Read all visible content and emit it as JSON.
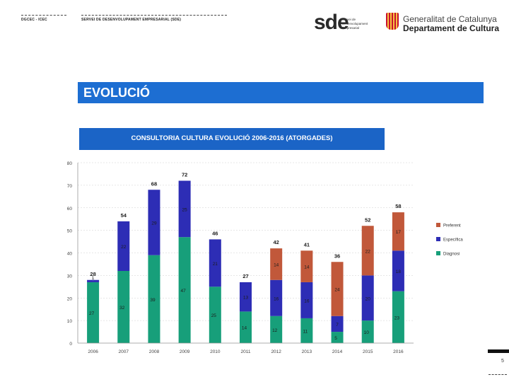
{
  "header": {
    "left_label": "DGCEC - ICEC",
    "mid_label": "SERVEI DE DESENVOLUPAMENT EMPRESARIAL (SDE)",
    "sde_logo": {
      "letters": "sde",
      "text_lines": [
        "Servei de",
        "Desenvolupament",
        "Empresarial"
      ]
    },
    "gencat_logo": {
      "line1": "Generalitat de Catalunya",
      "line2": "Departament de Cultura"
    }
  },
  "section_title": "EVOLUCIÓ",
  "chart_data": {
    "type": "bar",
    "stacked": true,
    "title": "CONSULTORIA CULTURA EVOLUCIÓ 2006-2016 (ATORGADES)",
    "categories": [
      "2006",
      "2007",
      "2008",
      "2009",
      "2010",
      "2011",
      "2012",
      "2013",
      "2014",
      "2015",
      "2016"
    ],
    "series": [
      {
        "name": "Diagnosi",
        "color": "#179f7a",
        "values": [
          27,
          32,
          39,
          47,
          25,
          14,
          12,
          11,
          5,
          10,
          23
        ]
      },
      {
        "name": "Específica",
        "color": "#2d2db5",
        "values": [
          1,
          22,
          29,
          25,
          21,
          13,
          16,
          16,
          7,
          20,
          18
        ]
      },
      {
        "name": "Preferent",
        "color": "#c1583a",
        "values": [
          0,
          0,
          0,
          0,
          0,
          0,
          14,
          14,
          24,
          22,
          17
        ]
      }
    ],
    "segment_labels": {
      "Diagnosi": [
        "27",
        "32",
        "39",
        "47",
        "25",
        "14",
        "12",
        "11",
        "5",
        "10",
        "23"
      ],
      "Específica": [
        "1",
        "22",
        "29",
        "25",
        "21",
        "13",
        "16",
        "16",
        "7",
        "20",
        "18"
      ],
      "Preferent": [
        "",
        "",
        "",
        "",
        "",
        "",
        "14",
        "14",
        "24",
        "22",
        "17"
      ]
    },
    "totals": [
      "28",
      "54",
      "68",
      "72",
      "46",
      "27",
      "42",
      "41",
      "36",
      "52",
      "58"
    ],
    "ylim": [
      0,
      80
    ],
    "yticks": [
      "0",
      "10",
      "20",
      "30",
      "40",
      "50",
      "60",
      "70",
      "80"
    ],
    "legend_order": [
      "Preferent",
      "Específica",
      "Diagnosi"
    ],
    "legend_position": "right"
  },
  "page_number": "5"
}
